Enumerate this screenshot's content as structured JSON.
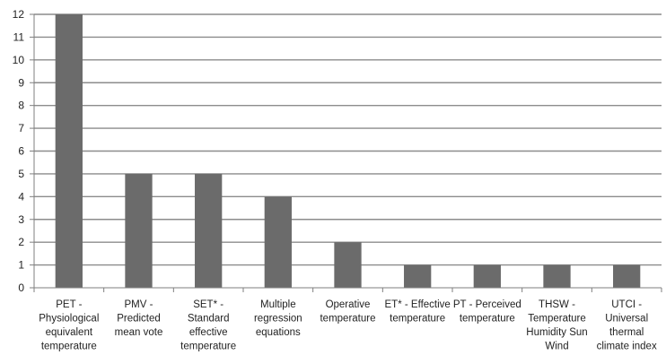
{
  "chart_data": {
    "type": "bar",
    "categories": [
      [
        "PET -",
        "Physiological",
        "equivalent",
        "temperature"
      ],
      [
        "PMV -",
        "Predicted",
        "mean vote"
      ],
      [
        "SET* -",
        "Standard",
        "effective",
        "temperature"
      ],
      [
        "Multiple",
        "regression",
        "equations"
      ],
      [
        "Operative",
        "temperature"
      ],
      [
        "ET* - Effective",
        "temperature"
      ],
      [
        "PT - Perceived",
        "temperature"
      ],
      [
        "THSW -",
        "Temperature",
        "Humidity Sun",
        "Wind"
      ],
      [
        "UTCI -",
        "Universal",
        "thermal",
        "climate index"
      ]
    ],
    "values": [
      12,
      5,
      5,
      4,
      2,
      1,
      1,
      1,
      1
    ],
    "ylim": [
      0,
      12
    ],
    "yticks": [
      0,
      1,
      2,
      3,
      4,
      5,
      6,
      7,
      8,
      9,
      10,
      11,
      12
    ],
    "grid": true,
    "bar_color": "#6b6b6b",
    "grid_color": "#8c8c8c",
    "axis_color": "#7f7f7f"
  }
}
